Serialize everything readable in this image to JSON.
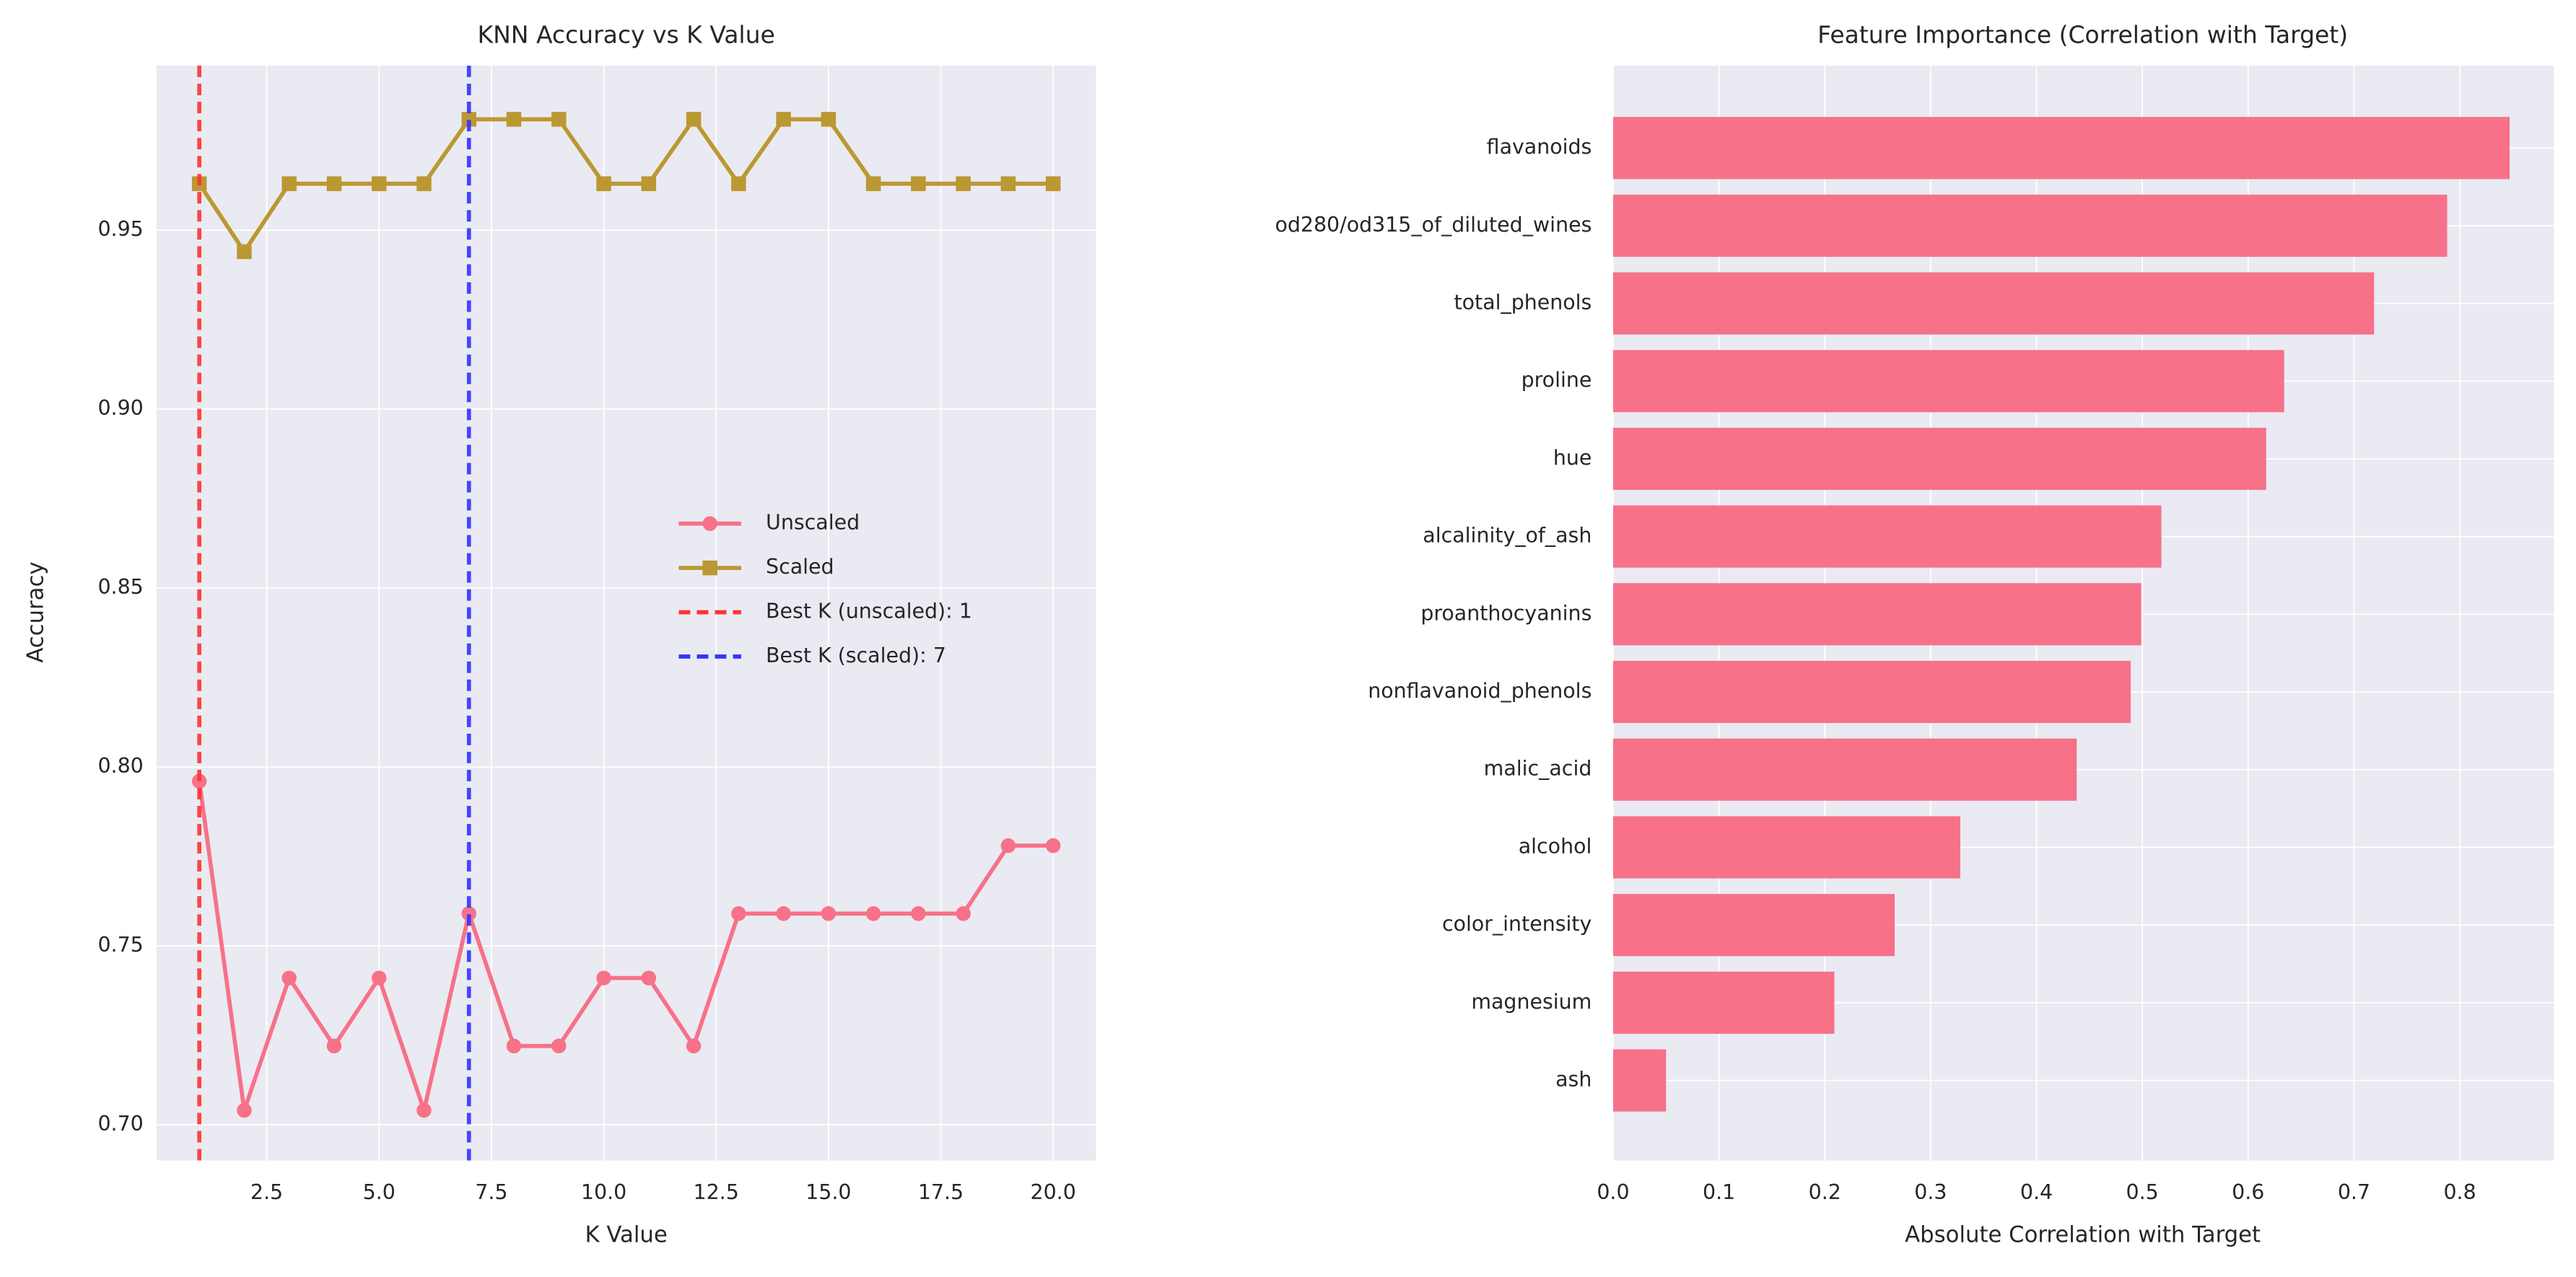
{
  "chart_data": [
    {
      "type": "line",
      "title": "KNN Accuracy vs K Value",
      "xlabel": "K Value",
      "ylabel": "Accuracy",
      "x": [
        1,
        2,
        3,
        4,
        5,
        6,
        7,
        8,
        9,
        10,
        11,
        12,
        13,
        14,
        15,
        16,
        17,
        18,
        19,
        20
      ],
      "series": [
        {
          "name": "Unscaled",
          "color": "#f77189",
          "marker": "circle",
          "values": [
            0.796,
            0.704,
            0.741,
            0.722,
            0.741,
            0.704,
            0.759,
            0.722,
            0.722,
            0.741,
            0.741,
            0.722,
            0.759,
            0.759,
            0.759,
            0.759,
            0.759,
            0.759,
            0.778,
            0.778
          ]
        },
        {
          "name": "Scaled",
          "color": "#bb9832",
          "marker": "square",
          "values": [
            0.963,
            0.944,
            0.963,
            0.963,
            0.963,
            0.963,
            0.981,
            0.981,
            0.981,
            0.963,
            0.963,
            0.981,
            0.963,
            0.981,
            0.981,
            0.963,
            0.963,
            0.963,
            0.963,
            0.963
          ]
        }
      ],
      "vlines": [
        {
          "name": "Best K (unscaled): 1",
          "x": 1,
          "color": "#ff3333"
        },
        {
          "name": "Best K (scaled): 7",
          "x": 7,
          "color": "#3333ff"
        }
      ],
      "xlim": [
        0.05,
        20.95
      ],
      "xticks": [
        2.5,
        {
          "value": 5,
          "label": "5.0"
        },
        7.5,
        {
          "value": 10,
          "label": "10.0"
        },
        12.5,
        {
          "value": 15,
          "label": "15.0"
        },
        17.5,
        {
          "value": 20,
          "label": "20.0"
        }
      ],
      "ylim": [
        0.69,
        0.996
      ],
      "yticks": [
        {
          "value": 0.7,
          "label": "0.70"
        },
        0.75,
        {
          "value": 0.8,
          "label": "0.80"
        },
        0.85,
        {
          "value": 0.9,
          "label": "0.90"
        },
        0.95
      ],
      "grid": true,
      "legend": "center right"
    },
    {
      "type": "barh",
      "title": "Feature Importance (Correlation with Target)",
      "xlabel": "Absolute Correlation with Target",
      "categories": [
        "flavanoids",
        "od280/od315_of_diluted_wines",
        "total_phenols",
        "proline",
        "hue",
        "alcalinity_of_ash",
        "proanthocyanins",
        "nonflavanoid_phenols",
        "malic_acid",
        "alcohol",
        "color_intensity",
        "magnesium",
        "ash"
      ],
      "values": [
        0.847,
        0.788,
        0.719,
        0.634,
        0.617,
        0.518,
        0.499,
        0.489,
        0.438,
        0.328,
        0.266,
        0.209,
        0.05
      ],
      "color": "#f77189",
      "xlim": [
        0,
        0.889
      ],
      "xticks": [
        {
          "value": 0,
          "label": "0.0"
        },
        0.1,
        0.2,
        0.3,
        0.4,
        0.5,
        0.6,
        0.7,
        0.8
      ],
      "grid": true
    }
  ]
}
